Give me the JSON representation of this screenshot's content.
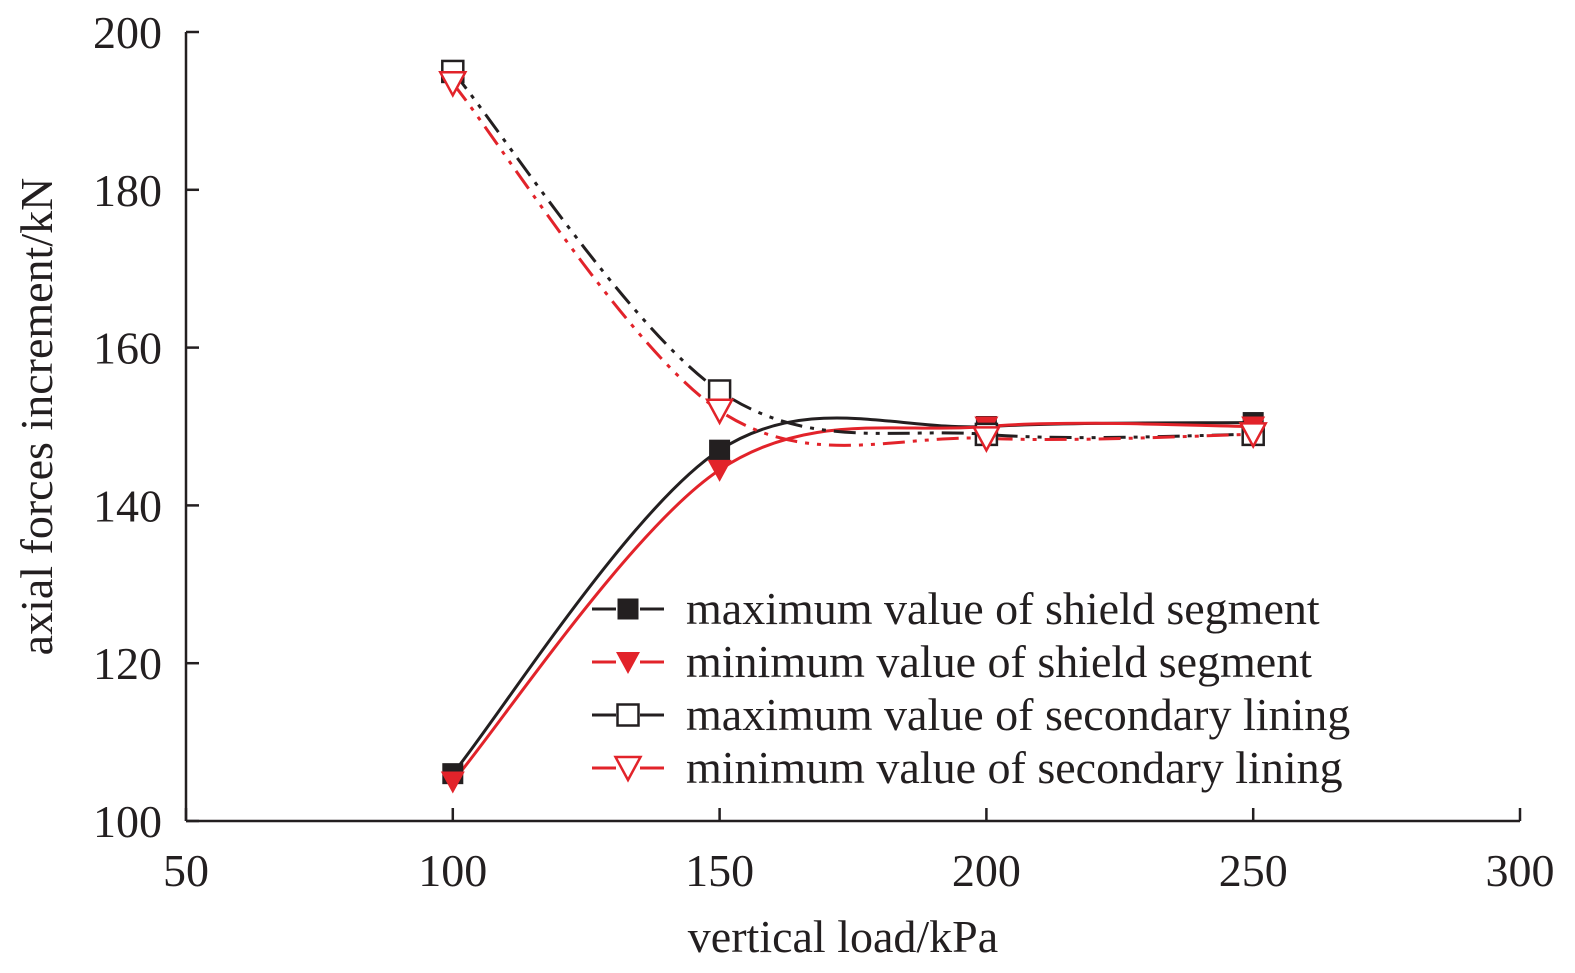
{
  "chart_data": {
    "type": "line",
    "xlabel": "vertical load/kPa",
    "ylabel": "axial forces increment/kN",
    "xlim": [
      50,
      300
    ],
    "ylim": [
      100,
      200
    ],
    "xticks": [
      50,
      100,
      150,
      200,
      250,
      300
    ],
    "yticks": [
      100,
      120,
      140,
      160,
      180,
      200
    ],
    "x": [
      100,
      150,
      200,
      250
    ],
    "grid": false,
    "legend_position": "bottom-right",
    "series": [
      {
        "name": "maximum value of shield segment",
        "values": [
          106,
          147,
          150,
          150.5
        ],
        "color": "#231f20",
        "marker": "filled-square",
        "line": "solid"
      },
      {
        "name": "minimum value of shield segment",
        "values": [
          105,
          144.5,
          150,
          150
        ],
        "color": "#e2232a",
        "marker": "filled-triangle-down",
        "line": "solid"
      },
      {
        "name": "maximum value of secondary lining",
        "values": [
          195,
          154.5,
          149,
          149
        ],
        "color": "#231f20",
        "marker": "open-square",
        "line": "dash-dot"
      },
      {
        "name": "minimum value of secondary lining",
        "values": [
          193.5,
          152,
          148.5,
          149
        ],
        "color": "#e2232a",
        "marker": "open-triangle-down",
        "line": "dash-dot"
      }
    ]
  }
}
